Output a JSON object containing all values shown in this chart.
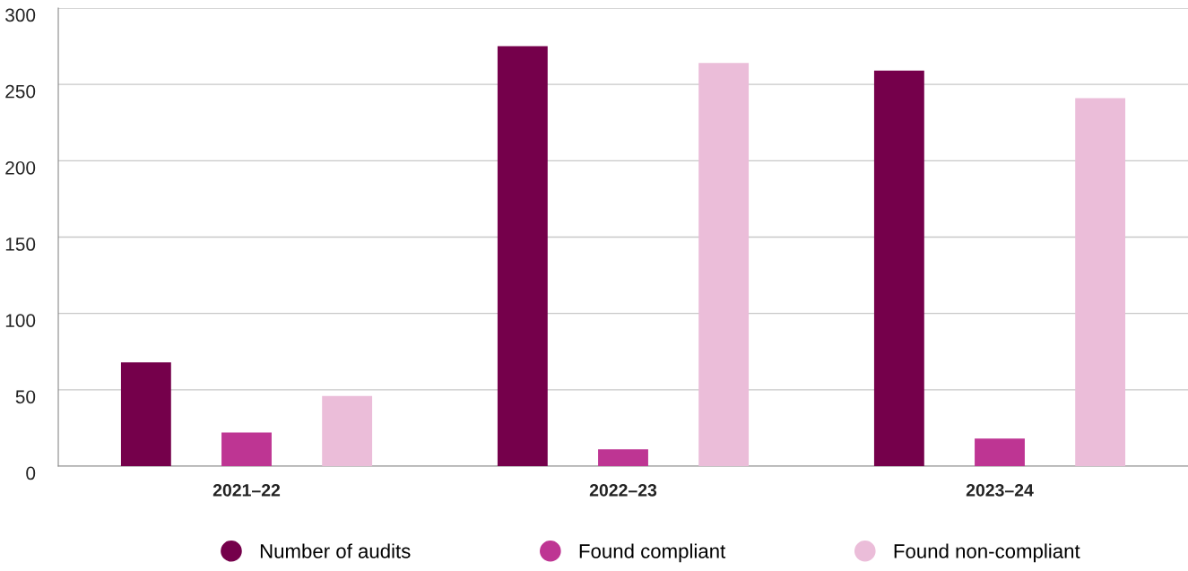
{
  "chart_data": {
    "type": "bar",
    "categories": [
      "2021–22",
      "2022–23",
      "2023–24"
    ],
    "series": [
      {
        "name": "Number of audits",
        "color": "#75004b",
        "values": [
          68,
          275,
          259
        ]
      },
      {
        "name": "Found compliant",
        "color": "#be3593",
        "values": [
          22,
          11,
          18
        ]
      },
      {
        "name": "Found non-compliant",
        "color": "#ebbdd9",
        "values": [
          46,
          264,
          241
        ]
      }
    ],
    "ylim": [
      0,
      300
    ],
    "yticks": [
      0,
      50,
      100,
      150,
      200,
      250,
      300
    ],
    "grid": "y",
    "legend": "bottom"
  }
}
